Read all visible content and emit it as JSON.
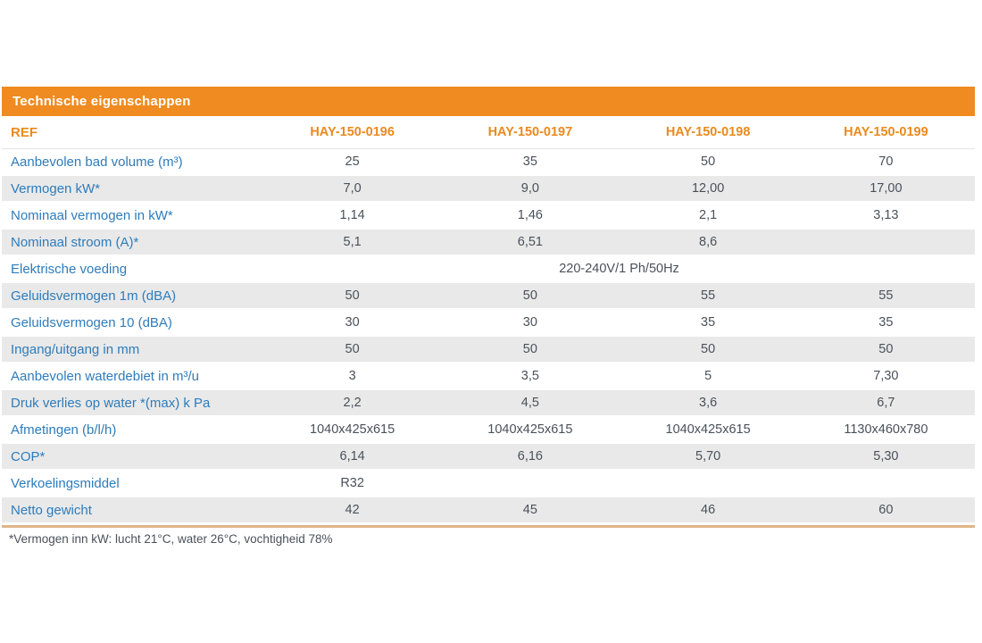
{
  "table": {
    "title": "Technische eigenschappen",
    "ref_label": "REF",
    "columns": [
      "HAY-150-0196",
      "HAY-150-0197",
      "HAY-150-0198",
      "HAY-150-0199"
    ],
    "rows": [
      {
        "label": "Aanbevolen bad volume (m³)",
        "values": [
          "25",
          "35",
          "50",
          "70"
        ]
      },
      {
        "label": "Vermogen kW*",
        "values": [
          "7,0",
          "9,0",
          "12,00",
          "17,00"
        ]
      },
      {
        "label": "Nominaal vermogen in kW*",
        "values": [
          "1,14",
          "1,46",
          "2,1",
          "3,13"
        ]
      },
      {
        "label": "Nominaal stroom (A)*",
        "values": [
          "5,1",
          "6,51",
          "8,6",
          ""
        ]
      },
      {
        "label": "Elektrische voeding",
        "span": true,
        "values": [
          "220-240V/1 Ph/50Hz"
        ]
      },
      {
        "label": "Geluidsvermogen 1m (dBA)",
        "values": [
          "50",
          "50",
          "55",
          "55"
        ]
      },
      {
        "label": "Geluidsvermogen 10 (dBA)",
        "values": [
          "30",
          "30",
          "35",
          "35"
        ]
      },
      {
        "label": "Ingang/uitgang in mm",
        "values": [
          "50",
          "50",
          "50",
          "50"
        ]
      },
      {
        "label": "Aanbevolen waterdebiet in m³/u",
        "values": [
          "3",
          "3,5",
          "5",
          "7,30"
        ]
      },
      {
        "label": "Druk verlies op water *(max) k Pa",
        "values": [
          "2,2",
          "4,5",
          "3,6",
          "6,7"
        ]
      },
      {
        "label": "Afmetingen (b/l/h)",
        "values": [
          "1040x425x615",
          "1040x425x615",
          "1040x425x615",
          "1130x460x780"
        ]
      },
      {
        "label": "COP*",
        "values": [
          "6,14",
          "6,16",
          "5,70",
          "5,30"
        ]
      },
      {
        "label": "Verkoelingsmiddel",
        "values": [
          "R32",
          "",
          "",
          ""
        ]
      },
      {
        "label": "Netto gewicht",
        "values": [
          "42",
          "45",
          "46",
          "60"
        ]
      }
    ],
    "footnote": "*Vermogen inn kW: lucht 21°C, water 26°C, vochtigheid 78%"
  },
  "colors": {
    "header_bg": "#EF8B20",
    "header_text": "#FFFFFF",
    "column_header_text": "#EA8A1E",
    "label_text": "#2E7CBB",
    "value_text": "#4A515A",
    "row_alt_bg": "#E9E9E9",
    "bottom_border": "#DFB488"
  }
}
